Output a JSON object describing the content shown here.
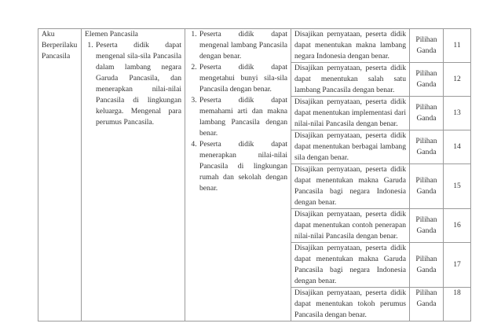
{
  "table": {
    "col1": "Aku Berperilaku Pancasila",
    "col2": {
      "heading": "Elemen Pancasila",
      "items": [
        "Peserta didik dapat mengenal sila-sila Pancasila dalam lambang negara Garuda Pancasila, dan menerapkan nilai-nilai Pancasila di lingkungan keluarga. Mengenal para perumus Pancasila."
      ]
    },
    "col3": {
      "items": [
        "Peserta didik dapat mengenal lambang Pancasila dengan benar.",
        "Peserta didik dapat mengetahui bunyi sila-sila Pancasila dengan benar.",
        "Peserta didik dapat memahami arti dan makna lambang Pancasila dengan benar.",
        "Peserta didik dapat menerapkan nilai-nilai Pancasila di lingkungan rumah dan sekolah dengan benar."
      ]
    },
    "rows": [
      {
        "indicator": "Disajikan pernyataan, peserta didik dapat menentukan makna lambang negara Indonesia dengan benar.",
        "form": "Pilihan Ganda",
        "number": "11"
      },
      {
        "indicator": "Disajikan pernyataan, peserta didik dapat menentukan salah satu lambang Pancasila dengan benar.",
        "form": "Pilihan Ganda",
        "number": "12"
      },
      {
        "indicator": "Disajikan pernyataan, peserta didik dapat menentukan implementasi dari nilai-nilai Pancasila dengan benar.",
        "form": "Pilihan Ganda",
        "number": "13"
      },
      {
        "indicator": "Disajikan pernyataan, peserta didik dapat menentukan berbagai lambang sila dengan benar.",
        "form": "Pilihan Ganda",
        "number": "14"
      },
      {
        "indicator": "Disajikan pernyataan, peserta didik dapat menentukan makna Garuda Pancasila bagi negara Indonesia dengan benar.",
        "form": "Pilihan Ganda",
        "number": "15"
      },
      {
        "indicator": "Disajikan pernyataan, peserta didik dapat menentukan contoh penerapan nilai-nilai Pancasila dengan benar.",
        "form": "Pilihan Ganda",
        "number": "16"
      },
      {
        "indicator": "Disajikan pernyataan, peserta didik dapat menentukan makna Garuda Pancasila bagi negara Indonesia dengan benar.",
        "form": "Pilihan Ganda",
        "number": "17"
      },
      {
        "indicator": "Disajikan pernyataan, peserta didik dapat menentukan tokoh perumus Pancasila dengan benar.",
        "form": "Pilihan Ganda",
        "number": "18"
      }
    ]
  }
}
